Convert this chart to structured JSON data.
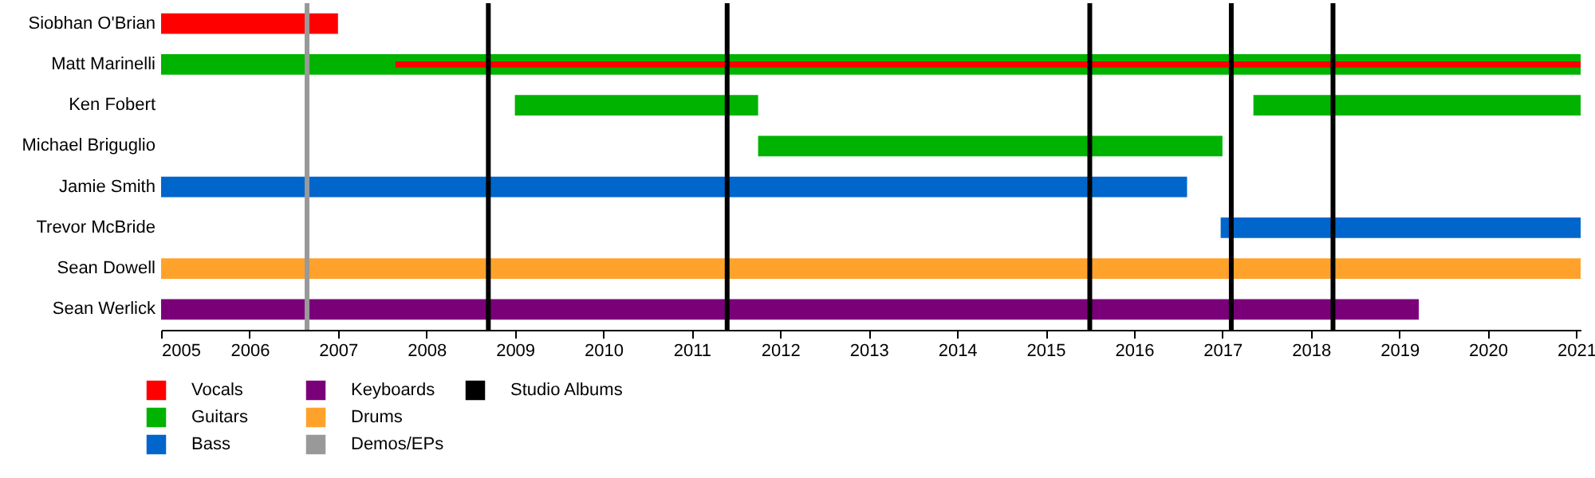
{
  "chart_data": {
    "type": "bar",
    "orientation": "horizontal",
    "categories": [
      "Siobhan O'Brian",
      "Matt Marinelli",
      "Ken Fobert",
      "Michael Briguglio",
      "Jamie Smith",
      "Trevor McBride",
      "Sean Dowell",
      "Sean Werlick"
    ],
    "series": [
      {
        "name": "Vocals",
        "color": "#ff0000",
        "base": [
          2005,
          2007.65,
          null,
          null,
          null,
          null,
          null,
          null
        ],
        "values": [
          2,
          13.4,
          null,
          null,
          null,
          null,
          null,
          null
        ]
      },
      {
        "name": "Guitars",
        "color": "#00b300",
        "base": [
          null,
          2005,
          2009,
          2011.75,
          null,
          null,
          null,
          null
        ],
        "values": [
          null,
          16.05,
          2.75,
          5.25,
          null,
          null,
          null,
          null
        ]
      },
      {
        "color": "#00b300",
        "base": [
          null,
          null,
          2017.35,
          null,
          null,
          null,
          null,
          null
        ],
        "values": [
          null,
          null,
          3.7,
          null,
          null,
          null,
          null,
          null
        ]
      },
      {
        "name": "Bass",
        "color": "#0066cc",
        "base": [
          null,
          null,
          null,
          null,
          2005,
          2016.98,
          null,
          null
        ],
        "values": [
          null,
          null,
          null,
          null,
          11.6,
          4.07,
          null,
          null
        ]
      },
      {
        "name": "Keyboards",
        "color": "#7a007a",
        "base": [
          null,
          null,
          null,
          null,
          null,
          null,
          null,
          2005
        ],
        "values": [
          null,
          null,
          null,
          null,
          null,
          null,
          null,
          14.22
        ]
      },
      {
        "name": "Drums",
        "color": "#ffa22c",
        "base": [
          null,
          null,
          null,
          null,
          null,
          null,
          2005,
          null
        ],
        "values": [
          null,
          null,
          null,
          null,
          null,
          null,
          16.05,
          null
        ]
      }
    ],
    "ref_lines": [
      {
        "axis": "x",
        "value": 2006.65,
        "label": "Demos/EPs",
        "color": "#999999"
      },
      {
        "axis": "x",
        "value": 2008.7,
        "label": "Studio Albums",
        "color": "#000000"
      },
      {
        "axis": "x",
        "value": 2011.4,
        "color": "#000000"
      },
      {
        "axis": "x",
        "value": 2015.5,
        "color": "#000000"
      },
      {
        "axis": "x",
        "value": 2017.1,
        "color": "#000000"
      },
      {
        "axis": "x",
        "value": 2018.25,
        "color": "#000000"
      }
    ],
    "xlim": [
      2005,
      2021.05
    ],
    "xticks": [
      2005,
      2006,
      2007,
      2008,
      2009,
      2010,
      2011,
      2012,
      2013,
      2014,
      2015,
      2016,
      2017,
      2018,
      2019,
      2020,
      2021
    ],
    "grid": false,
    "legend": "bottom left"
  }
}
